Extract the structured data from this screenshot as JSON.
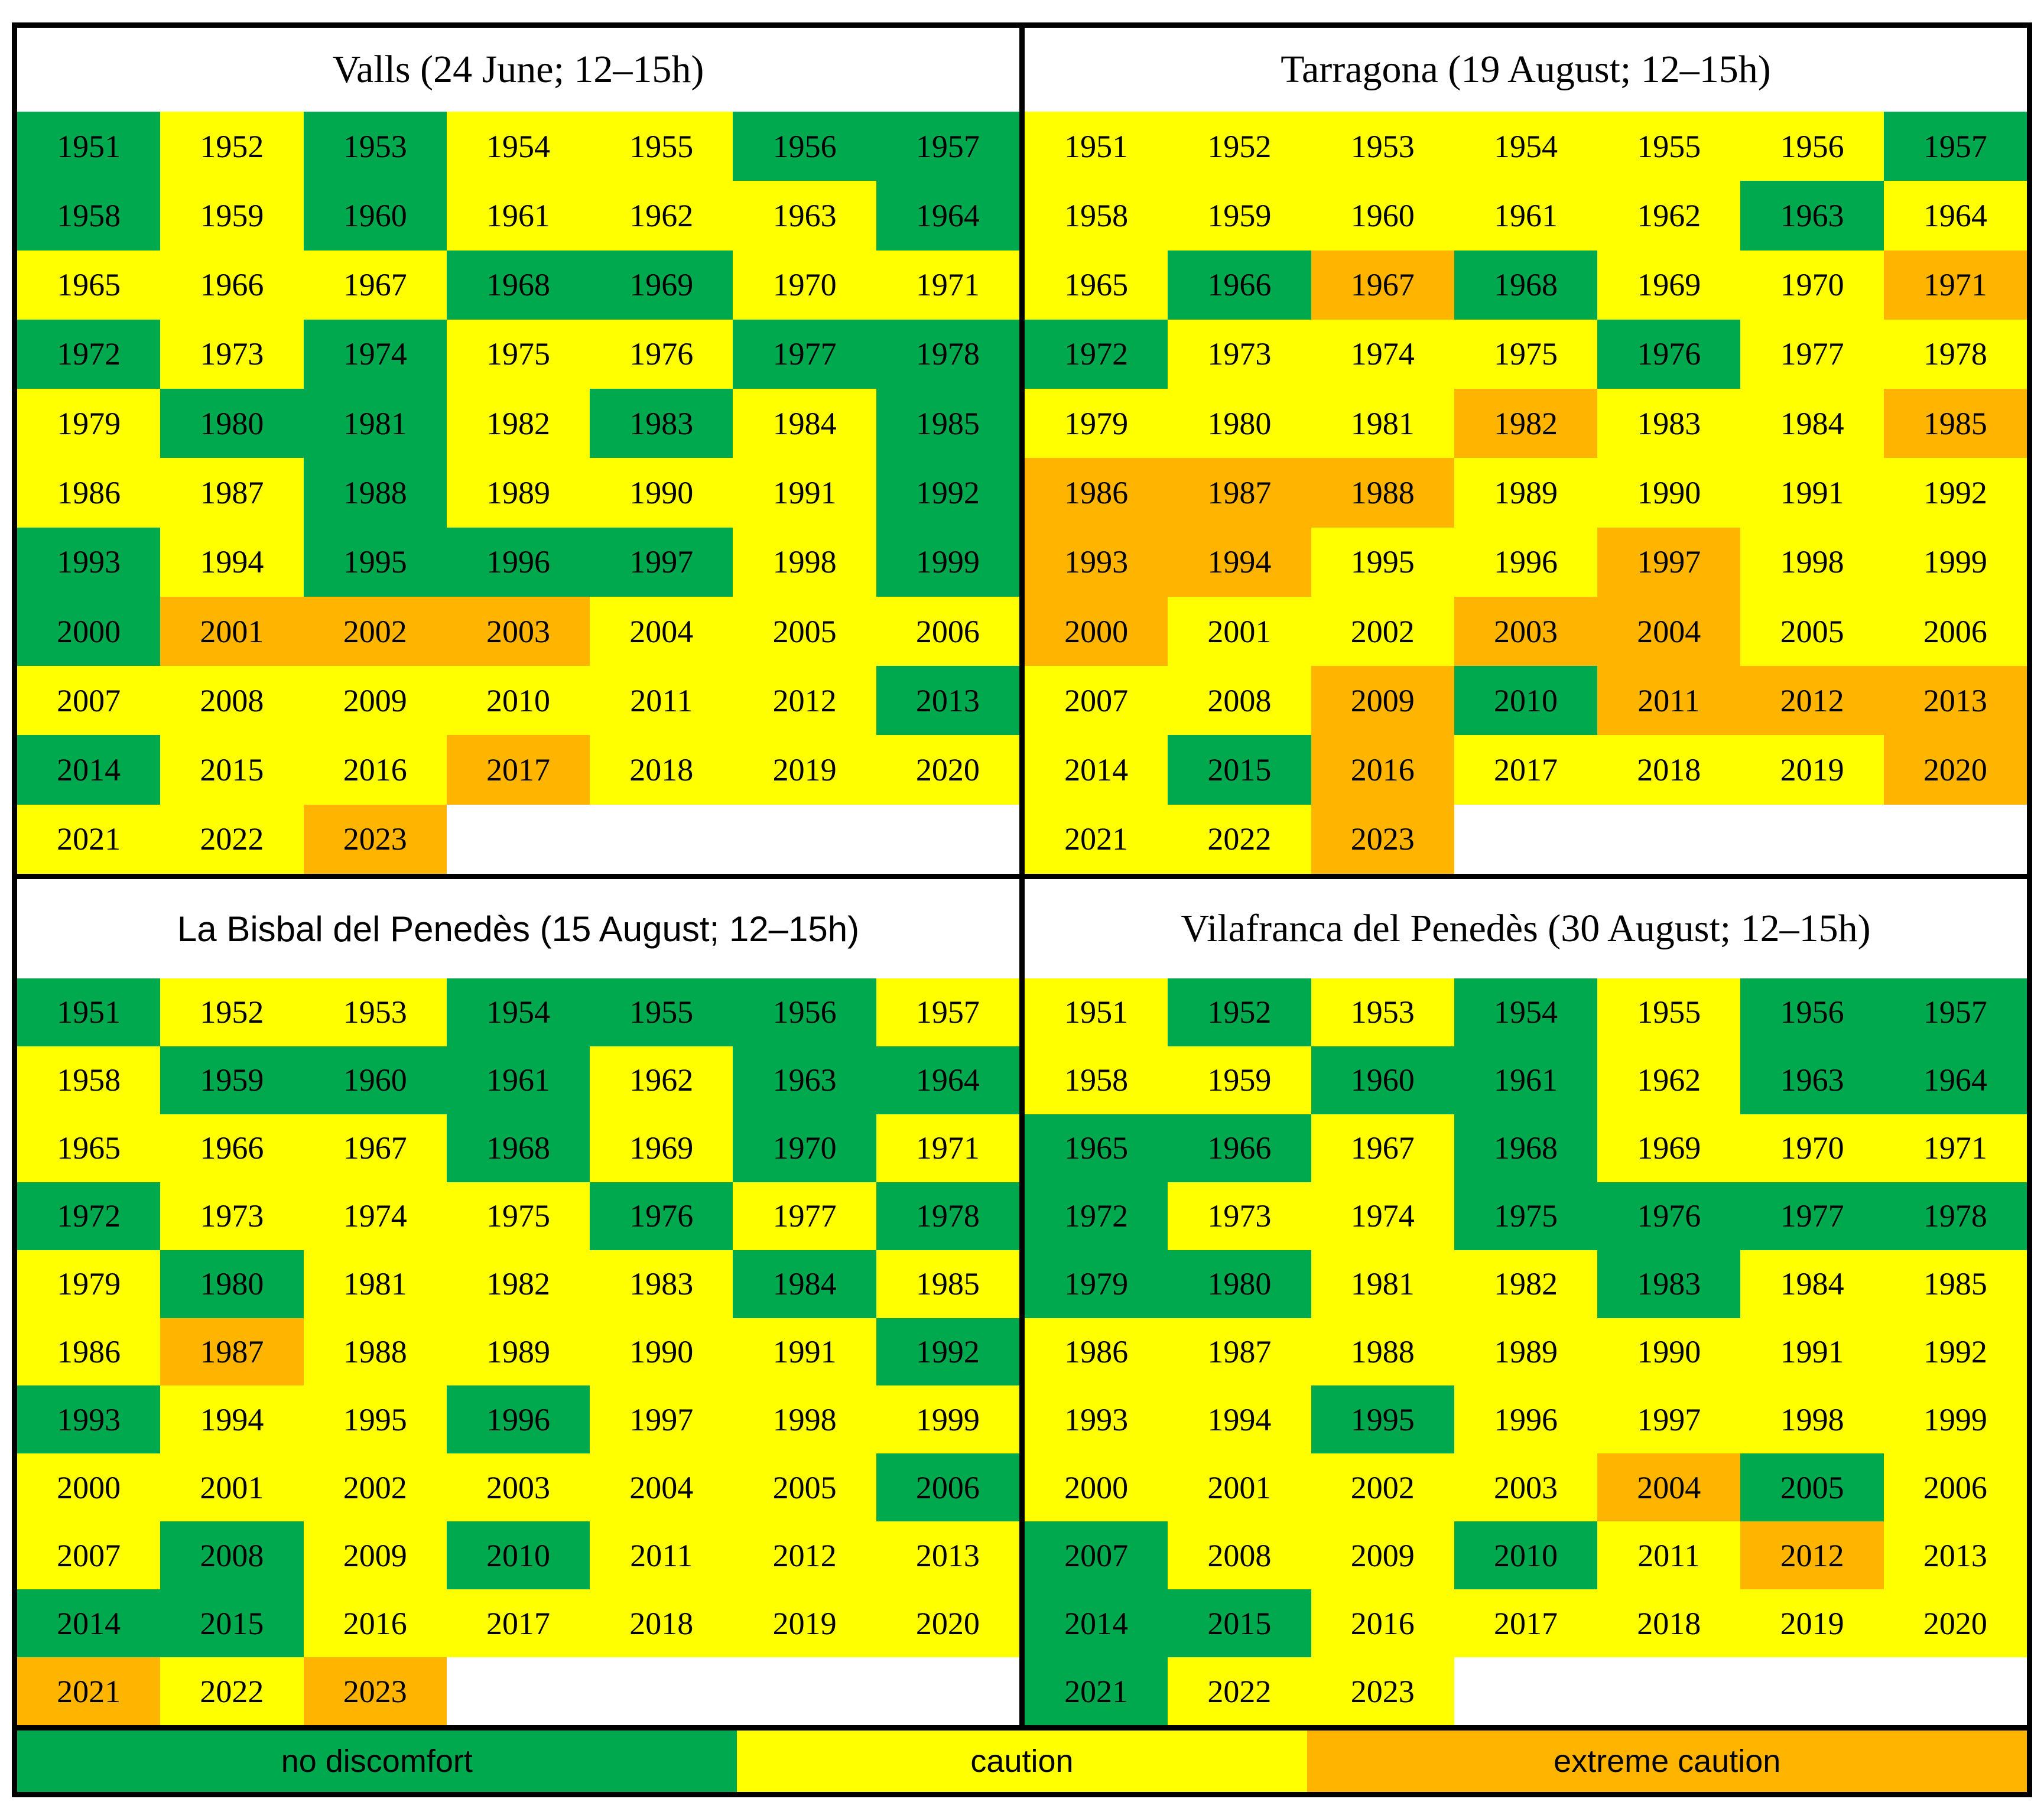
{
  "figure": {
    "background": "#ffffff",
    "border_color": "#000000"
  },
  "chart_data": {
    "type": "heatmap",
    "description": "Heat-stress category per year (1951-2023) for four locations, 12-15h window",
    "years": [
      1951,
      1952,
      1953,
      1954,
      1955,
      1956,
      1957,
      1958,
      1959,
      1960,
      1961,
      1962,
      1963,
      1964,
      1965,
      1966,
      1967,
      1968,
      1969,
      1970,
      1971,
      1972,
      1973,
      1974,
      1975,
      1976,
      1977,
      1978,
      1979,
      1980,
      1981,
      1982,
      1983,
      1984,
      1985,
      1986,
      1987,
      1988,
      1989,
      1990,
      1991,
      1992,
      1993,
      1994,
      1995,
      1996,
      1997,
      1998,
      1999,
      2000,
      2001,
      2002,
      2003,
      2004,
      2005,
      2006,
      2007,
      2008,
      2009,
      2010,
      2011,
      2012,
      2013,
      2014,
      2015,
      2016,
      2017,
      2018,
      2019,
      2020,
      2021,
      2022,
      2023
    ],
    "grid": {
      "columns": 7,
      "rows": 11
    },
    "level_labels": {
      "G": "no discomfort",
      "C": "caution",
      "E": "extreme caution"
    },
    "colors": {
      "G": "#00A94E",
      "C": "#FFFF00",
      "E": "#FFB400"
    },
    "series": [
      {
        "name": "Valls",
        "event_date": "24 June",
        "hours": "12–15h",
        "title": "Valls (24 June; 12–15h)",
        "title_sans": false,
        "levels": "GCGCCGGGCGCCCGCCCGGCCGCGCCGGCGGCGCGCCGCCCGGCGGGCGGEEECCCCCCCCCGGCCECCCCCE"
      },
      {
        "name": "Tarragona",
        "event_date": "19 August",
        "hours": "12–15h",
        "title": "Tarragona (19 August; 12–15h)",
        "title_sans": false,
        "levels": "CCCCCCGCCCCCGCCGEGCCEGCCCGCCCCCECCEEEECCCCEECCECCECCEECCCCEGEEECGECCCECCE"
      },
      {
        "name": "La Bisbal del Penedès",
        "event_date": "15 August",
        "hours": "12–15h",
        "title": "La Bisbal del Penedès (15 August; 12–15h)",
        "title_sans": true,
        "levels": "GCCGGGCCGGGCGGCCCGCGCGCCCGCGCGCCCGCCECCCCGGCCGCCCCCCCCCGCGCGCCCGGCCCCCECE"
      },
      {
        "name": "Vilafranca del Penedès",
        "event_date": "30 August",
        "hours": "12–15h",
        "title": "Vilafranca del Penedès (30 August; 12–15h)",
        "title_sans": false,
        "levels": "CGCGCGGCCGGCGGGGCGCCCGCCGGGGGGCCGCCCCCCCCCCCGCCCCCCCCEGCGCCGCECGGCCCCCGCC"
      }
    ]
  },
  "legend": {
    "items": [
      {
        "level": "G",
        "label": "no discomfort"
      },
      {
        "level": "C",
        "label": "caution"
      },
      {
        "level": "E",
        "label": "extreme caution"
      }
    ]
  }
}
